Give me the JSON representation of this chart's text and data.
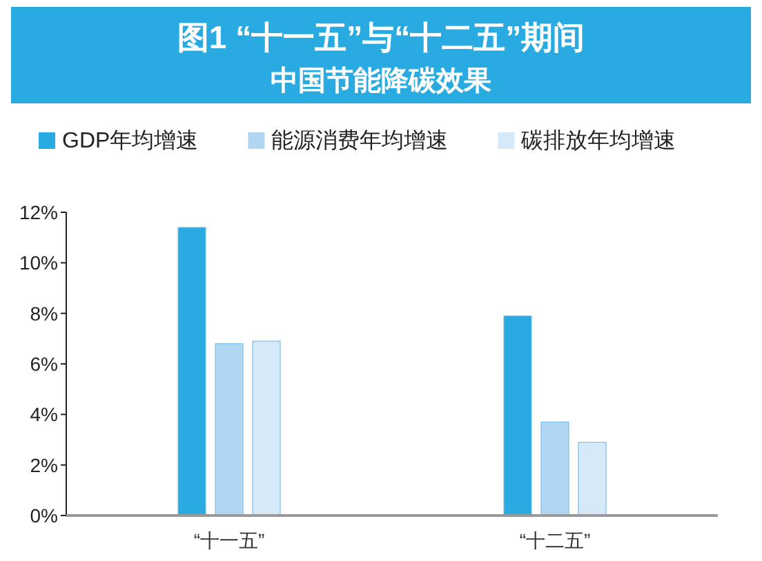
{
  "chart_data": {
    "type": "bar",
    "title": "图1 “十一五”与“十二五”期间",
    "subtitle": "中国节能降碳效果",
    "categories": [
      "“十一五”",
      "“十二五”"
    ],
    "series": [
      {
        "name": "GDP年均增速",
        "color": "#29abe2",
        "values": [
          11.4,
          7.9
        ]
      },
      {
        "name": "能源消费年均增速",
        "color": "#b0d6f3",
        "values": [
          6.8,
          3.7
        ]
      },
      {
        "name": "碳排放年均增速",
        "color": "#d5e9f8",
        "values": [
          6.9,
          2.9
        ]
      }
    ],
    "ylim": [
      0,
      12
    ],
    "yticks": [
      {
        "value": 0,
        "label": "0%"
      },
      {
        "value": 2,
        "label": "2%"
      },
      {
        "value": 4,
        "label": "4%"
      },
      {
        "value": 6,
        "label": "6%"
      },
      {
        "value": 8,
        "label": "8%"
      },
      {
        "value": 10,
        "label": "10%"
      },
      {
        "value": 12,
        "label": "12%"
      }
    ],
    "legend": "top"
  }
}
